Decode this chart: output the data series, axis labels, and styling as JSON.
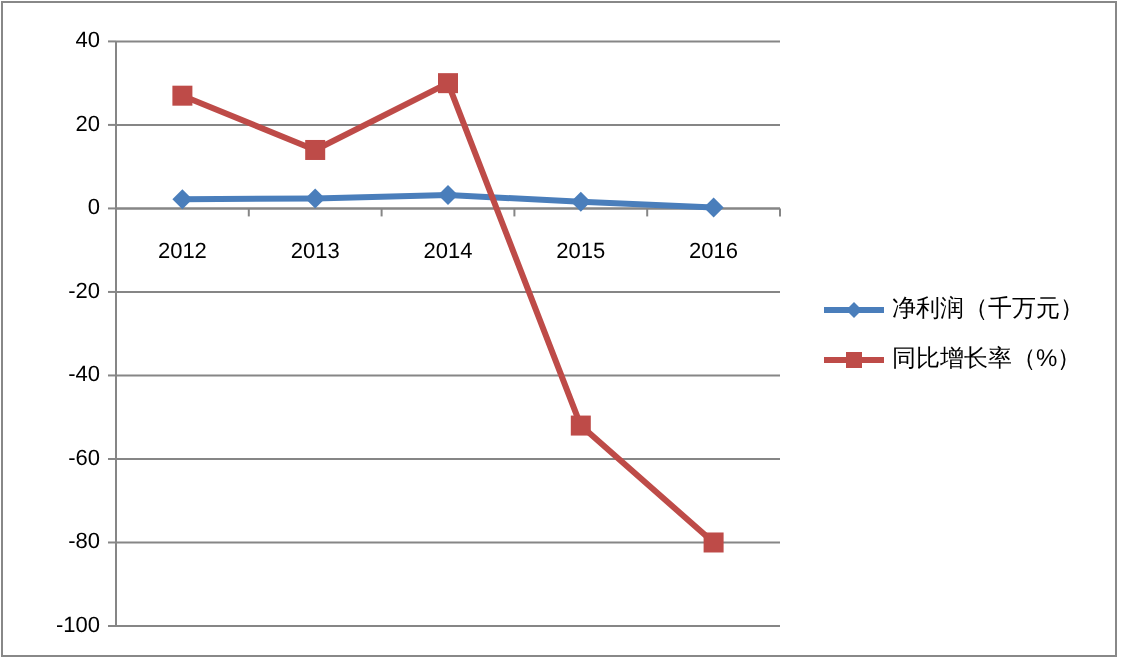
{
  "chart_data": {
    "type": "line",
    "categories": [
      "2012",
      "2013",
      "2014",
      "2015",
      "2016"
    ],
    "series": [
      {
        "name": "净利润（千万元）",
        "color": "#4a7ebb",
        "marker": "diamond",
        "values": [
          2.2,
          2.4,
          3.2,
          1.6,
          0.2
        ]
      },
      {
        "name": "同比增长率（%）",
        "color": "#be4b48",
        "marker": "square",
        "values": [
          27,
          14,
          30,
          -52,
          -80
        ]
      }
    ],
    "ylim": [
      -100,
      40
    ],
    "yticks": [
      -100,
      -80,
      -60,
      -40,
      -20,
      0,
      20,
      40
    ],
    "grid": "y",
    "legend": "right"
  }
}
